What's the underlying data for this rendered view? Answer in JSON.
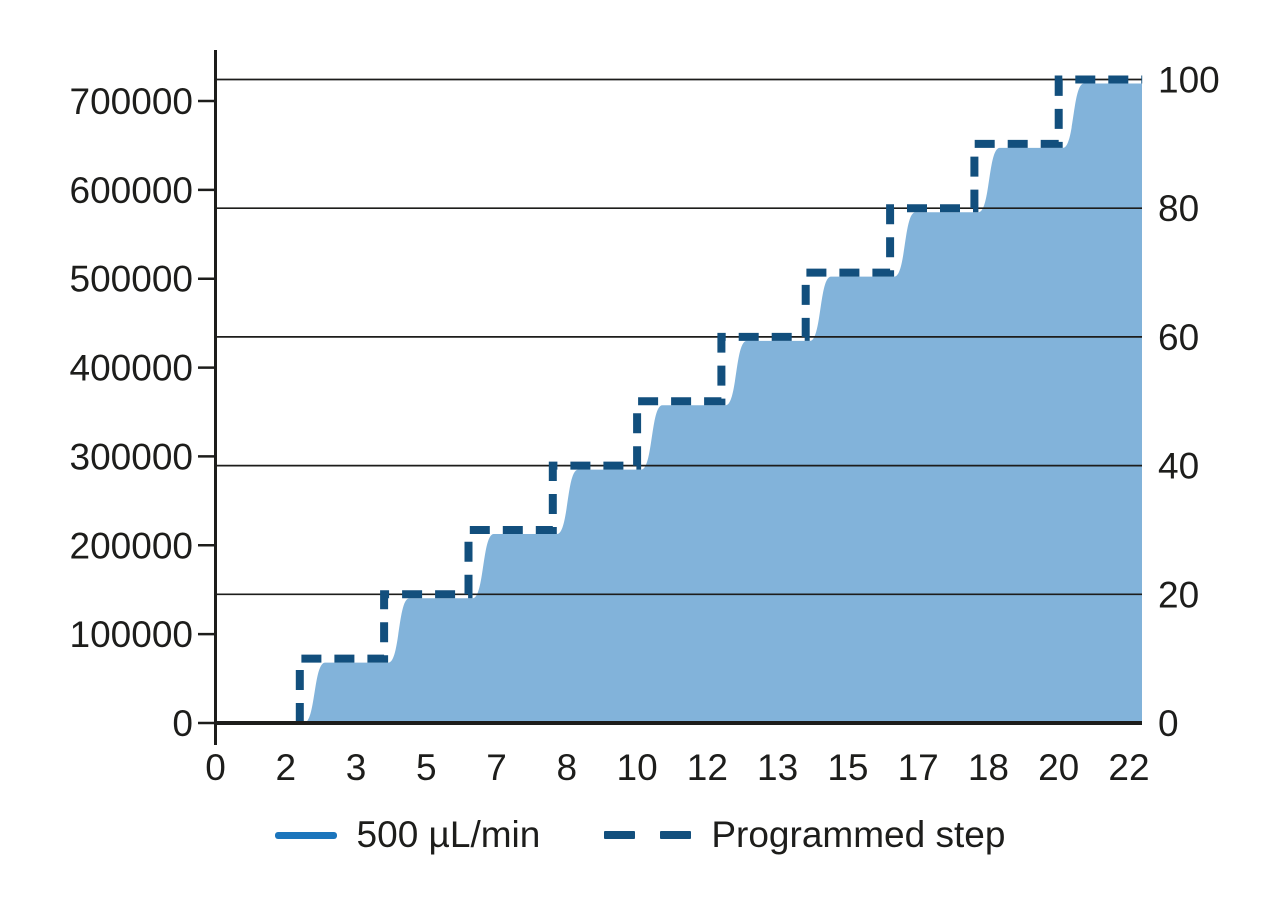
{
  "page": {
    "background": "#ffffff"
  },
  "chart_data": {
    "type": "area+step-line",
    "title": "",
    "grid": true,
    "axis_color": "#1d1d1b",
    "x_axis": {
      "tick_labels": [
        "0",
        "2",
        "3",
        "5",
        "7",
        "8",
        "10",
        "12",
        "13",
        "15",
        "17",
        "18",
        "20",
        "22"
      ],
      "tick_times_min": [
        0,
        1.67,
        3.33,
        5,
        6.67,
        8.33,
        10,
        11.67,
        13.33,
        15,
        16.67,
        18.33,
        20,
        21.67
      ],
      "range_min": [
        0,
        21.98
      ]
    },
    "left_y_axis": {
      "tick_labels": [
        "0",
        "100000",
        "200000",
        "300000",
        "400000",
        "500000",
        "600000",
        "700000"
      ],
      "tick_values": [
        0,
        100000,
        200000,
        300000,
        400000,
        500000,
        600000,
        700000
      ],
      "range": [
        0,
        766000
      ]
    },
    "right_y_axis": {
      "tick_labels": [
        "0",
        "20",
        "40",
        "60",
        "80",
        "100"
      ],
      "tick_values": [
        0,
        20,
        40,
        60,
        80,
        100
      ],
      "gridline_values": [
        20,
        40,
        60,
        80,
        100
      ],
      "range": [
        0,
        104.7
      ]
    },
    "right_pct_to_left_units": 7200,
    "series": [
      {
        "name": "500 µL/min",
        "style": "solid-area",
        "color": "#1b75bc",
        "fill_opacity": 0.55,
        "transitions": {
          "times": [
            2,
            4,
            6,
            8,
            10,
            12,
            14,
            16,
            18,
            20
          ],
          "levels_pct": [
            10,
            20,
            30,
            40,
            50,
            60,
            70,
            80,
            90,
            100
          ],
          "start_level_pct": 0,
          "lag_min": 0.1,
          "rise_min": 0.5,
          "end_time_min": 21.98
        }
      },
      {
        "name": "Programmed step",
        "style": "dashed-step",
        "color": "#124f7d",
        "line_width": 8,
        "points_t_pct": [
          [
            2,
            0
          ],
          [
            2,
            10
          ],
          [
            4,
            10
          ],
          [
            4,
            20
          ],
          [
            6,
            20
          ],
          [
            6,
            30
          ],
          [
            8,
            30
          ],
          [
            8,
            40
          ],
          [
            10,
            40
          ],
          [
            10,
            50
          ],
          [
            12,
            50
          ],
          [
            12,
            60
          ],
          [
            14,
            60
          ],
          [
            14,
            70
          ],
          [
            16,
            70
          ],
          [
            16,
            80
          ],
          [
            18,
            80
          ],
          [
            18,
            90
          ],
          [
            20,
            90
          ],
          [
            20,
            100
          ],
          [
            21.98,
            100
          ]
        ]
      }
    ],
    "legend": [
      {
        "label": "500 µL/min",
        "color": "#1b75bc",
        "style": "solid"
      },
      {
        "label": "Programmed step",
        "color": "#124f7d",
        "style": "dashed"
      }
    ]
  }
}
